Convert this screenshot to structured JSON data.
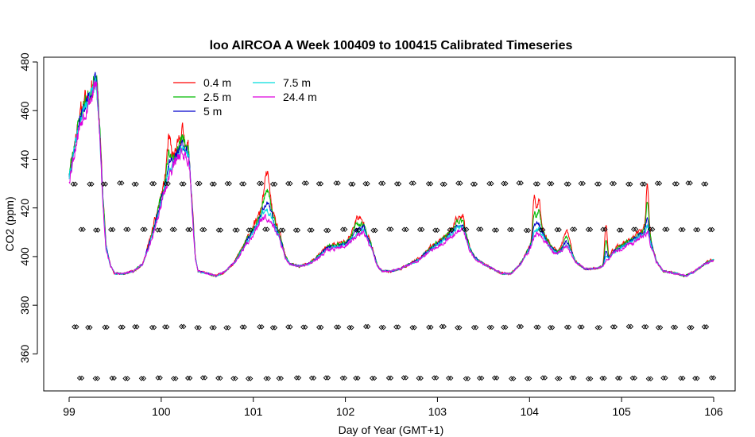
{
  "chart_data": {
    "type": "line",
    "title": "loo AIRCOA A  Week 100409 to 100415  Calibrated Timeseries",
    "xlabel": "Day of Year (GMT+1)",
    "ylabel": "CO2 (ppm)",
    "xlim": [
      99,
      106
    ],
    "ylim": [
      350,
      480
    ],
    "x_ticks": [
      99,
      100,
      101,
      102,
      103,
      104,
      105,
      106
    ],
    "y_ticks": [
      360,
      380,
      400,
      420,
      440,
      460,
      480
    ],
    "grid": false,
    "legend_position": "top-left",
    "base_profile": [
      [
        99.0,
        435
      ],
      [
        99.05,
        445
      ],
      [
        99.1,
        455
      ],
      [
        99.15,
        462
      ],
      [
        99.2,
        466
      ],
      [
        99.25,
        470
      ],
      [
        99.28,
        474
      ],
      [
        99.3,
        472
      ],
      [
        99.33,
        455
      ],
      [
        99.36,
        430
      ],
      [
        99.4,
        405
      ],
      [
        99.45,
        396
      ],
      [
        99.5,
        393
      ],
      [
        99.6,
        393
      ],
      [
        99.7,
        394
      ],
      [
        99.8,
        397
      ],
      [
        99.9,
        410
      ],
      [
        100.0,
        425
      ],
      [
        100.1,
        438
      ],
      [
        100.2,
        446
      ],
      [
        100.3,
        444
      ],
      [
        100.34,
        420
      ],
      [
        100.37,
        400
      ],
      [
        100.4,
        394
      ],
      [
        100.5,
        393
      ],
      [
        100.6,
        392
      ],
      [
        100.7,
        394
      ],
      [
        100.8,
        398
      ],
      [
        100.9,
        405
      ],
      [
        101.0,
        412
      ],
      [
        101.1,
        420
      ],
      [
        101.2,
        418
      ],
      [
        101.28,
        410
      ],
      [
        101.35,
        400
      ],
      [
        101.4,
        397
      ],
      [
        101.5,
        396
      ],
      [
        101.6,
        397
      ],
      [
        101.7,
        400
      ],
      [
        101.8,
        404
      ],
      [
        101.9,
        405
      ],
      [
        102.0,
        406
      ],
      [
        102.1,
        410
      ],
      [
        102.2,
        413
      ],
      [
        102.28,
        405
      ],
      [
        102.35,
        396
      ],
      [
        102.4,
        394
      ],
      [
        102.5,
        394
      ],
      [
        102.6,
        395
      ],
      [
        102.7,
        397
      ],
      [
        102.8,
        399
      ],
      [
        102.9,
        403
      ],
      [
        103.0,
        406
      ],
      [
        103.1,
        409
      ],
      [
        103.2,
        413
      ],
      [
        103.28,
        414
      ],
      [
        103.35,
        404
      ],
      [
        103.4,
        400
      ],
      [
        103.5,
        397
      ],
      [
        103.6,
        395
      ],
      [
        103.7,
        393
      ],
      [
        103.8,
        393
      ],
      [
        103.9,
        397
      ],
      [
        104.0,
        404
      ],
      [
        104.08,
        412
      ],
      [
        104.15,
        410
      ],
      [
        104.22,
        405
      ],
      [
        104.3,
        402
      ],
      [
        104.4,
        405
      ],
      [
        104.45,
        403
      ],
      [
        104.5,
        398
      ],
      [
        104.6,
        395
      ],
      [
        104.7,
        395
      ],
      [
        104.8,
        396
      ],
      [
        104.9,
        402
      ],
      [
        105.0,
        405
      ],
      [
        105.1,
        407
      ],
      [
        105.2,
        410
      ],
      [
        105.28,
        412
      ],
      [
        105.33,
        405
      ],
      [
        105.38,
        398
      ],
      [
        105.45,
        394
      ],
      [
        105.6,
        393
      ],
      [
        105.7,
        392
      ],
      [
        105.8,
        394
      ],
      [
        105.9,
        397
      ],
      [
        106.0,
        399
      ]
    ],
    "spikes": [
      [
        100.08,
        12,
        0.03
      ],
      [
        100.23,
        6,
        0.03
      ],
      [
        101.15,
        15,
        0.04
      ],
      [
        102.13,
        5,
        0.05
      ],
      [
        103.25,
        3,
        0.05
      ],
      [
        104.05,
        15,
        0.02
      ],
      [
        104.1,
        12,
        0.03
      ],
      [
        104.83,
        15,
        0.02
      ],
      [
        105.28,
        18,
        0.02
      ],
      [
        104.4,
        6,
        0.04
      ]
    ],
    "series": [
      {
        "name": "0.4 m",
        "color": "#ff0000",
        "spike_scale": 1.0,
        "offset": 0.0,
        "noise": 1.6,
        "seed": 11
      },
      {
        "name": "2.5 m",
        "color": "#00bb00",
        "spike_scale": 0.6,
        "offset": -0.5,
        "noise": 1.2,
        "seed": 23
      },
      {
        "name": "5 m",
        "color": "#0000cc",
        "spike_scale": 0.3,
        "offset": -1.5,
        "noise": 1.0,
        "seed": 37
      },
      {
        "name": "7.5 m",
        "color": "#00dddd",
        "spike_scale": 0.15,
        "offset": -2.5,
        "noise": 0.9,
        "seed": 41
      },
      {
        "name": "24.4 m",
        "color": "#dd00dd",
        "spike_scale": 0.05,
        "offset": -3.5,
        "noise": 1.3,
        "seed": 53
      }
    ],
    "flag_rows": [
      430,
      411,
      371,
      350
    ],
    "flag_step_days": 0.167,
    "flag_marker": "diamond"
  }
}
